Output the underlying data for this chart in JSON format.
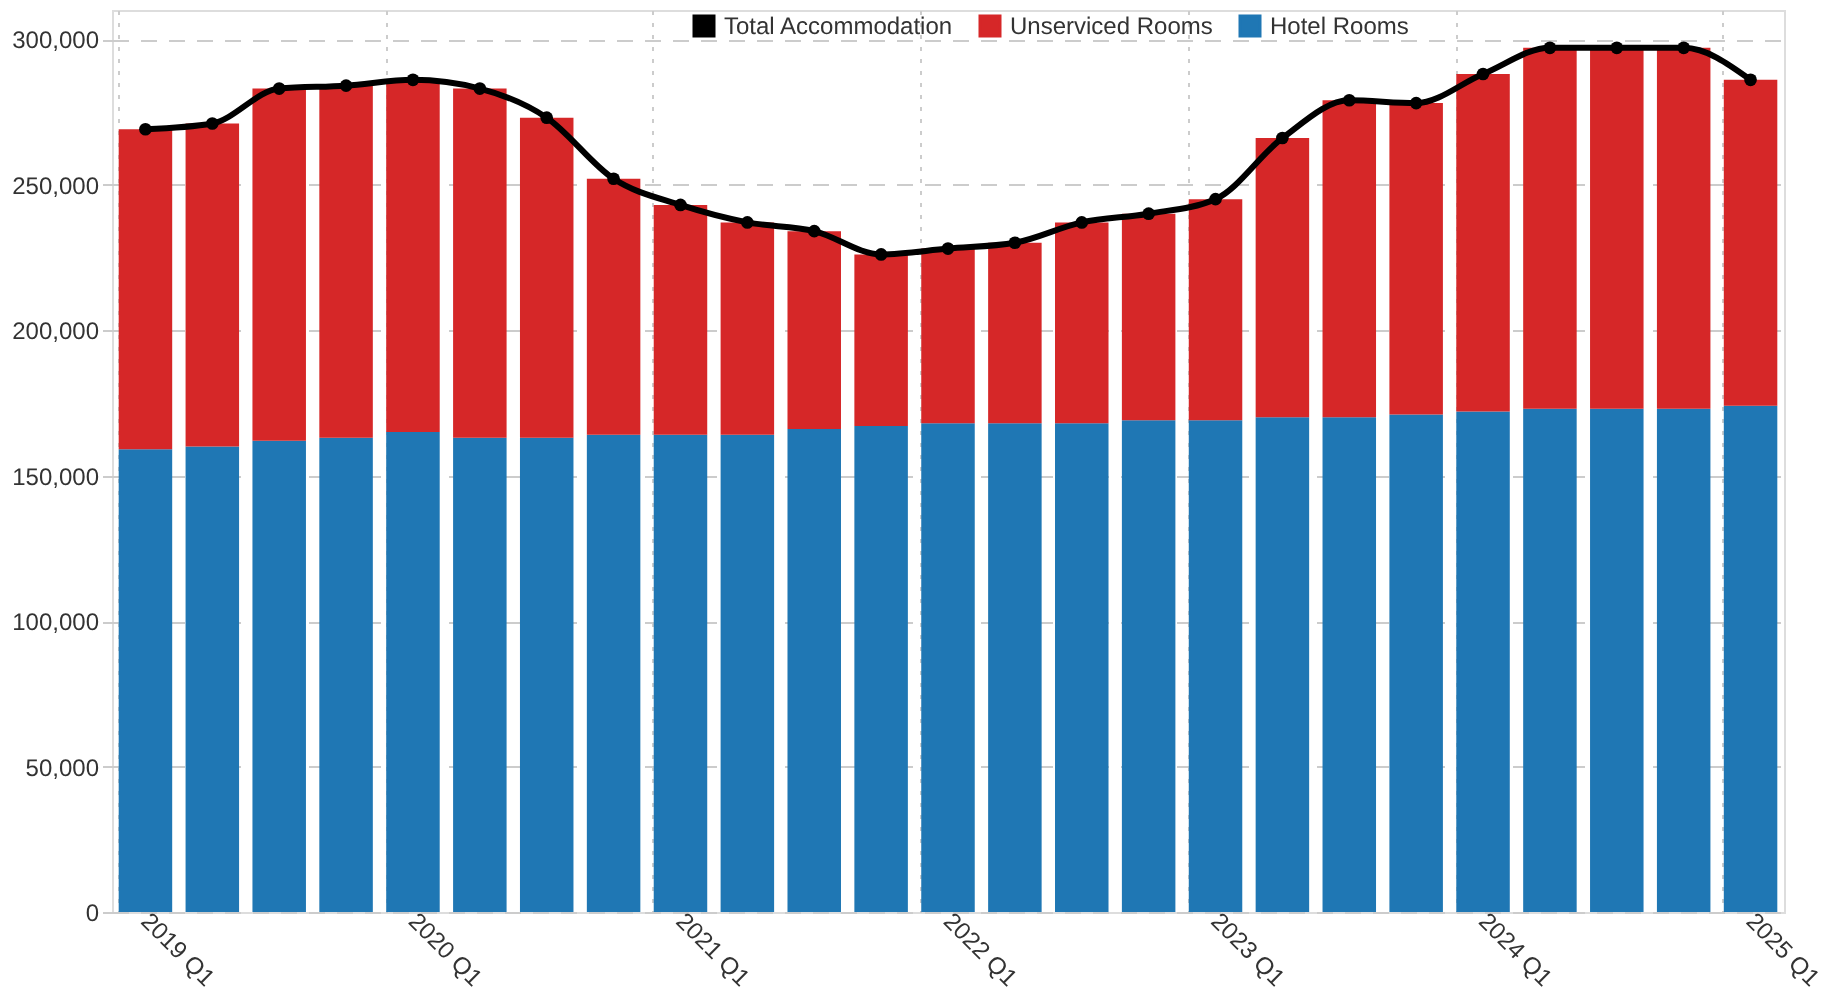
{
  "chart_data": {
    "type": "bar",
    "stacked": true,
    "categories": [
      "2019 Q1",
      null,
      null,
      null,
      "2020 Q1",
      null,
      null,
      null,
      "2021 Q1",
      null,
      null,
      null,
      "2022 Q1",
      null,
      null,
      null,
      "2023 Q1",
      null,
      null,
      null,
      "2024 Q1",
      null,
      null,
      null,
      "2025 Q1"
    ],
    "series": [
      {
        "name": "Hotel Rooms",
        "color": "#1f77b4",
        "values": [
          159000,
          160000,
          162000,
          163000,
          165000,
          163000,
          163000,
          164000,
          164000,
          164000,
          166000,
          167000,
          168000,
          168000,
          168000,
          169000,
          169000,
          170000,
          170000,
          171000,
          172000,
          173000,
          173000,
          173000,
          174000
        ]
      },
      {
        "name": "Unserviced Rooms",
        "color": "#d62728",
        "values": [
          110000,
          111000,
          121000,
          121000,
          121000,
          120000,
          110000,
          88000,
          79000,
          73000,
          68000,
          59000,
          60000,
          62000,
          69000,
          71000,
          76000,
          96000,
          109000,
          107000,
          116000,
          124000,
          124000,
          124000,
          112000
        ]
      },
      {
        "name": "Total Accommodation",
        "type": "line",
        "color": "#000000",
        "marker": "circle",
        "line_style": "solid",
        "values": [
          269000,
          271000,
          283000,
          284000,
          286000,
          283000,
          273000,
          252000,
          243000,
          237000,
          234000,
          226000,
          228000,
          230000,
          237000,
          240000,
          245000,
          266000,
          279000,
          278000,
          288000,
          297000,
          297000,
          297000,
          286000
        ]
      }
    ],
    "ylim": [
      0,
      310000
    ],
    "yticks": [
      {
        "value": 0,
        "label": "0"
      },
      {
        "value": 50000,
        "label": "50,000"
      },
      {
        "value": 100000,
        "label": "100,000"
      },
      {
        "value": 150000,
        "label": "150,000"
      },
      {
        "value": 200000,
        "label": "200,000"
      },
      {
        "value": 250000,
        "label": "250,000"
      },
      {
        "value": 300000,
        "label": "300,000"
      }
    ],
    "grid": true,
    "legend": "top right"
  }
}
